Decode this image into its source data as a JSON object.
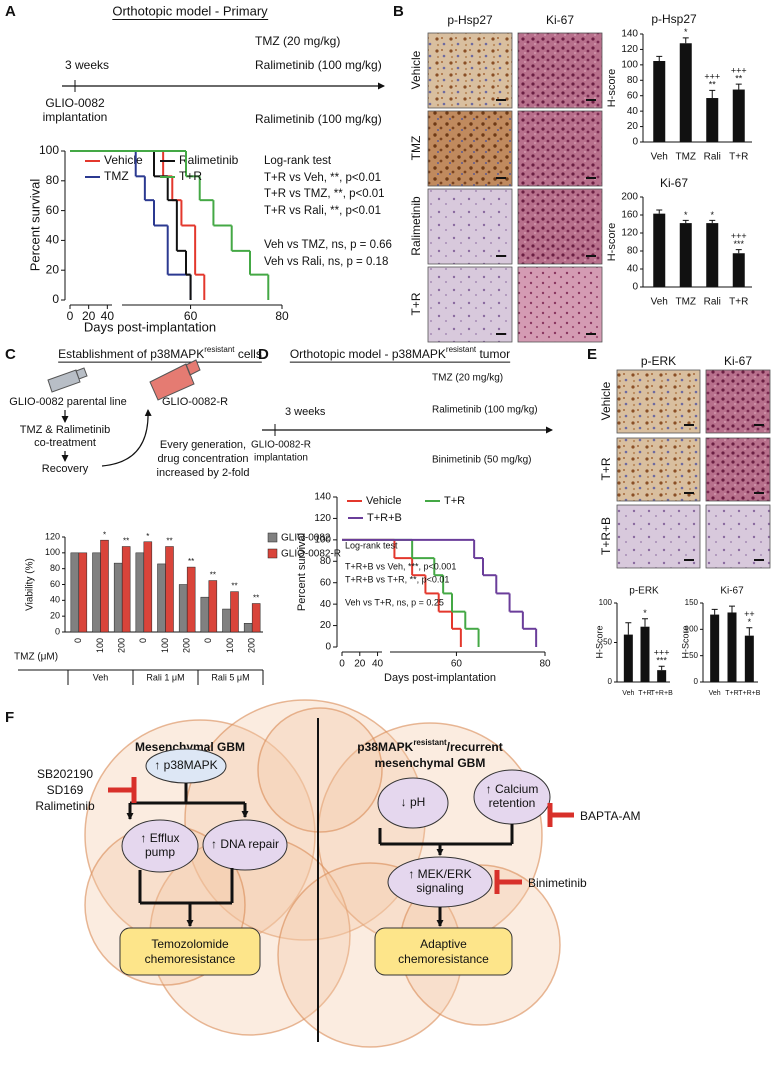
{
  "panels": {
    "A": {
      "label": "A",
      "title": "Orthotopic model - Primary",
      "timeline": {
        "tmz": "TMZ (20 mg/kg)",
        "weeks": "3 weeks",
        "drug_top": "Ralimetinib (100 mg/kg)",
        "drug_bottom": "Ralimetinib (100 mg/kg)",
        "implant": [
          "GLIO-0082",
          "implantation"
        ]
      }
    },
    "B": {
      "label": "B",
      "columns": [
        "p-Hsp27",
        "Ki-67"
      ],
      "rows": [
        "Vehicle",
        "TMZ",
        "Ralimetinib",
        "T+R"
      ]
    },
    "C": {
      "label": "C",
      "title": [
        "Establishment of p38MAPK",
        "resistant",
        " cells"
      ],
      "schema": {
        "parental": "GLIO-0082 parental line",
        "resistant": "GLIO-0082-R",
        "treatment": [
          "TMZ & Ralimetinib",
          "co-treatment"
        ],
        "recovery": "Recovery",
        "note": [
          "Every generation,",
          "drug concentration",
          "increased by 2-fold"
        ]
      }
    },
    "D": {
      "label": "D",
      "title": [
        "Orthotopic model - p38MAPK",
        "resistant",
        " tumor"
      ],
      "timeline": {
        "tmz": "TMZ (20 mg/kg)",
        "weeks": "3 weeks",
        "drug_top": "Ralimetinib (100 mg/kg)",
        "drug_bottom": "Binimetinib (50 mg/kg)",
        "implant": [
          "GLIO-0082-R",
          "implantation"
        ]
      }
    },
    "E": {
      "label": "E",
      "columns": [
        "p-ERK",
        "Ki-67"
      ],
      "rows": [
        "Vehicle",
        "T+R",
        "T+R+B"
      ]
    },
    "F": {
      "label": "F",
      "left_title": "Mesenchymal GBM",
      "right_title": [
        "p38MAPK",
        "resistant",
        "/recurrent",
        "mesenchymal GBM"
      ],
      "inhibitors_left": [
        "SB202190",
        "SD169",
        "Ralimetinib"
      ],
      "inhibitor_calcium": "BAPTA-AM",
      "inhibitor_mek": "Binimetinib",
      "nodes": {
        "p38": [
          "↑ p38MAPK"
        ],
        "efflux": [
          "↑ Efflux",
          "pump"
        ],
        "dna": [
          "↑ DNA repair"
        ],
        "tmz_res": [
          "Temozolomide",
          "chemoresistance"
        ],
        "ph": [
          "↓ pH"
        ],
        "calcium": [
          "↑ Calcium",
          "retention"
        ],
        "mek": [
          "↑ MEK/ERK",
          "signaling"
        ],
        "adaptive": [
          "Adaptive",
          "chemoresistance"
        ]
      }
    }
  },
  "chart_data": [
    {
      "type": "survival",
      "xlabel": "Days post-implantation",
      "ylabel": "Percent survival",
      "xlim": [
        0,
        80
      ],
      "x_axis_break": 45,
      "xticks": [
        0,
        20,
        40,
        60,
        80
      ],
      "ylim": [
        0,
        100
      ],
      "yticks": [
        0,
        20,
        40,
        60,
        80,
        100
      ],
      "series": [
        {
          "name": "Vehicle",
          "color": "#e3372c",
          "x": [
            0,
            54,
            56,
            58,
            61,
            63
          ],
          "values": [
            100,
            83,
            67,
            50,
            17,
            0
          ]
        },
        {
          "name": "TMZ",
          "color": "#2b3990",
          "x": [
            0,
            48,
            50,
            52,
            55,
            60
          ],
          "values": [
            100,
            83,
            67,
            50,
            17,
            0
          ]
        },
        {
          "name": "Ralimetinib",
          "color": "#111111",
          "x": [
            0,
            52,
            55,
            57,
            59,
            60
          ],
          "values": [
            100,
            83,
            67,
            33,
            17,
            0
          ]
        },
        {
          "name": "T+R",
          "color": "#44a845",
          "x": [
            0,
            59,
            62,
            65,
            69,
            73,
            77
          ],
          "values": [
            100,
            83,
            67,
            50,
            33,
            17,
            0
          ]
        }
      ],
      "annotations": [
        "Log-rank test",
        "T+R vs Veh, **, p<0.01",
        "T+R vs TMZ, **, p<0.01",
        "T+R vs Rali, **, p<0.01",
        "Veh vs TMZ, ns, p = 0.66",
        "Veh vs Rali, ns, p = 0.18"
      ]
    },
    {
      "type": "bar",
      "title": "p-Hsp27",
      "ylabel": "H-score",
      "categories": [
        "Veh",
        "TMZ",
        "Rali",
        "T+R"
      ],
      "values": [
        105,
        128,
        57,
        68
      ],
      "errors": [
        6,
        7,
        10,
        7
      ],
      "significance": [
        [],
        [
          "*"
        ],
        [
          "+++",
          "**"
        ],
        [
          "+++",
          "**"
        ]
      ],
      "color": "#111111",
      "ylim": [
        0,
        140
      ],
      "yticks": [
        0,
        20,
        40,
        60,
        80,
        100,
        120,
        140
      ]
    },
    {
      "type": "bar",
      "title": "Ki-67",
      "ylabel": "H-score",
      "categories": [
        "Veh",
        "TMZ",
        "Rali",
        "T+R"
      ],
      "values": [
        163,
        142,
        142,
        75
      ],
      "errors": [
        8,
        6,
        6,
        8
      ],
      "significance": [
        [],
        [
          "*"
        ],
        [
          "*"
        ],
        [
          "+++",
          "***"
        ]
      ],
      "color": "#111111",
      "ylim": [
        0,
        200
      ],
      "yticks": [
        0,
        40,
        80,
        120,
        160,
        200
      ]
    },
    {
      "type": "grouped_bar",
      "ylabel": "Viability (%)",
      "xlabel": "TMZ (μM)",
      "categories": [
        "0",
        "100",
        "200",
        "0",
        "100",
        "200",
        "0",
        "100",
        "200"
      ],
      "groups": [
        "Veh",
        "Rali 1 μM",
        "Rali 5 μM"
      ],
      "ylim": [
        0,
        120
      ],
      "yticks": [
        0,
        20,
        40,
        60,
        80,
        100,
        120
      ],
      "series": [
        {
          "name": "GLIO-0082",
          "color": "#808080",
          "values": [
            100,
            100,
            87,
            100,
            86,
            60,
            44,
            29,
            11
          ],
          "significance": [
            null,
            null,
            null,
            null,
            null,
            null,
            null,
            null,
            null
          ]
        },
        {
          "name": "GLIO-0082-R",
          "color": "#d9443a",
          "values": [
            100,
            116,
            108,
            114,
            108,
            82,
            65,
            51,
            36
          ],
          "significance": [
            null,
            "*",
            "**",
            "*",
            "**",
            "**",
            "**",
            "**",
            "**"
          ]
        }
      ]
    },
    {
      "type": "survival",
      "xlabel": "Days post-implantation",
      "ylabel": "Percent survival",
      "xlim": [
        0,
        80
      ],
      "x_axis_break": 45,
      "xticks": [
        0,
        20,
        40,
        60,
        80
      ],
      "ylim": [
        0,
        140
      ],
      "yticks": [
        0,
        20,
        40,
        60,
        80,
        100,
        120,
        140
      ],
      "series": [
        {
          "name": "Vehicle",
          "color": "#e3372c",
          "x": [
            0,
            46,
            50,
            53,
            56,
            59,
            61
          ],
          "values": [
            100,
            83,
            67,
            50,
            33,
            17,
            0
          ]
        },
        {
          "name": "T+R",
          "color": "#44a845",
          "x": [
            0,
            50,
            55,
            57,
            59,
            62,
            65
          ],
          "values": [
            100,
            83,
            67,
            50,
            33,
            17,
            0
          ]
        },
        {
          "name": "T+R+B",
          "color": "#6a3d9a",
          "x": [
            0,
            64,
            66,
            69,
            72,
            75,
            78
          ],
          "values": [
            100,
            83,
            67,
            50,
            33,
            17,
            0
          ]
        }
      ],
      "annotations": [
        "Log-rank test",
        "T+R+B vs Veh, ***, p<0.001",
        "T+R+B vs T+R, **, p<0.01",
        "Veh vs T+R, ns, p = 0.25"
      ]
    },
    {
      "type": "bar",
      "title": "p-ERK",
      "ylabel": "H-Score",
      "categories": [
        "Veh",
        "T+R",
        "T+R+B"
      ],
      "values": [
        60,
        70,
        15
      ],
      "errors": [
        15,
        10,
        5
      ],
      "significance": [
        [],
        [
          "*"
        ],
        [
          "+++",
          "***"
        ]
      ],
      "color": "#111111",
      "ylim": [
        0,
        100
      ],
      "yticks": [
        0,
        50,
        100
      ]
    },
    {
      "type": "bar",
      "title": "Ki-67",
      "ylabel": "H-Score",
      "categories": [
        "Veh",
        "T+R",
        "T+R+B"
      ],
      "values": [
        128,
        132,
        88
      ],
      "errors": [
        10,
        12,
        15
      ],
      "significance": [
        [],
        [],
        [
          "++",
          "*"
        ]
      ],
      "color": "#111111",
      "ylim": [
        0,
        150
      ],
      "yticks": [
        0,
        50,
        100,
        150
      ]
    }
  ]
}
